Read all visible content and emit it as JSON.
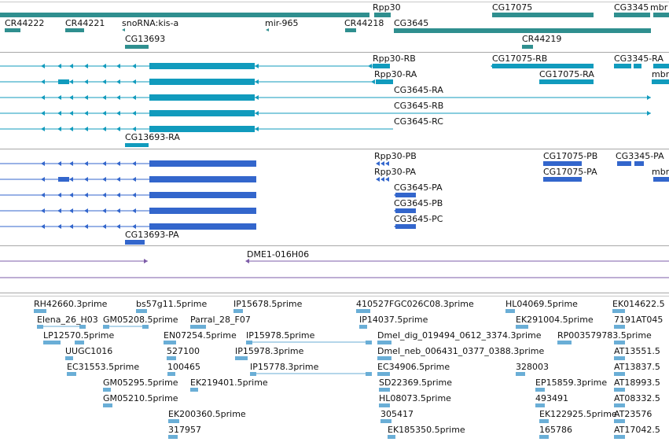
{
  "colors": {
    "gene": "#2f8f8f",
    "transcript": "#119bbd",
    "protein": "#3366cc",
    "clone": "#7d5ca8",
    "est": "#6aaed6"
  },
  "gene_labels": [
    "CR44222",
    "CR44221",
    "snoRNA:kis-a",
    "mir-965",
    "CR44218",
    "CG3645",
    "Rpp30",
    "CG17075",
    "CG3345",
    "mbr",
    "CG13693",
    "CR44219"
  ],
  "transcript_labels": [
    "Rpp30-RB",
    "CG17075-RB",
    "CG3345-RA",
    "Rpp30-RA",
    "CG17075-RA",
    "mbr",
    "CG3645-RA",
    "CG3645-RB",
    "CG3645-RC",
    "CG13693-RA"
  ],
  "protein_labels": [
    "Rpp30-PB",
    "CG17075-PB",
    "CG3345-PA",
    "Rpp30-PA",
    "CG17075-PA",
    "mbr",
    "CG3645-PA",
    "CG3645-PB",
    "CG3645-PC",
    "CG13693-PA"
  ],
  "clone_labels": [
    "DME1-016H06"
  ],
  "est_labels": [
    "RH42660.3prime",
    "bs57g11.5prime",
    "IP15678.5prime",
    "410527FGC026C08.3prime",
    "HL04069.5prime",
    "EK014622.5",
    "Elena_26_H03",
    "GM05208.5prime",
    "Parral_28_F07",
    "IP14037.5prime",
    "EK291004.5prime",
    "7191AT045",
    "LP12570.5prime",
    "EN07254.5prime",
    "IP15978.5prime",
    "Dmel_dig_019494_0612_3374.3prime",
    "RP003579783.5prime",
    "UUGC1016",
    "527100",
    "IP15978.3prime",
    "Dmel_neb_006431_0377_0388.3prime",
    "AT13551.5",
    "EC31553.5prime",
    "100465",
    "IP15778.3prime",
    "EC34906.5prime",
    "328003",
    "AT13837.5",
    "GM05295.5prime",
    "EK219401.5prime",
    "SD22369.5prime",
    "EP15859.3prime",
    "AT18993.5",
    "GM05210.5prime",
    "HL08073.5prime",
    "493491",
    "AT08332.5",
    "EK200360.5prime",
    "305417",
    "EK122925.5prime",
    "AT23576",
    "317957",
    "EK185350.5prime",
    "165786",
    "AT17042.5"
  ]
}
